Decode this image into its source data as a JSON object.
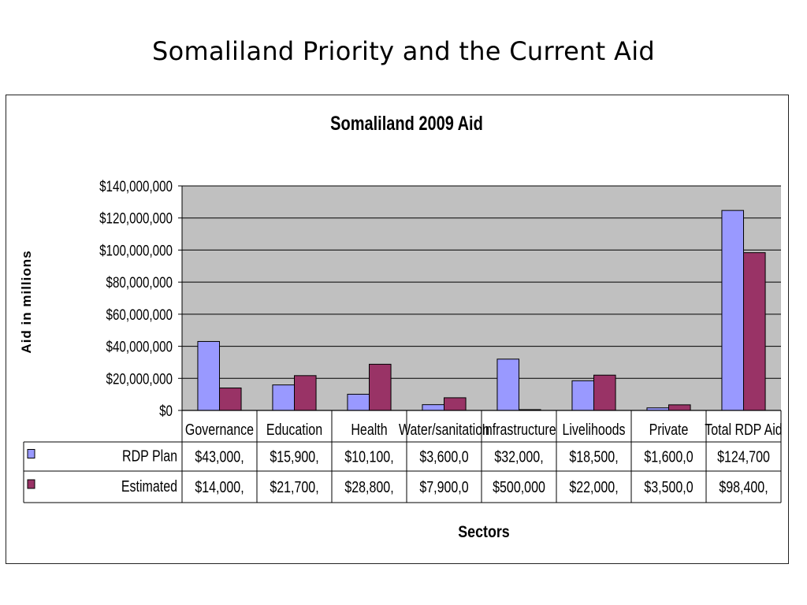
{
  "slide": {
    "title": "Somaliland Priority and the Current Aid"
  },
  "chart_data": {
    "type": "bar",
    "title": "Somaliland 2009 Aid",
    "xlabel": "Sectors",
    "ylabel": "Aid in millions",
    "ylim": [
      0,
      140000000
    ],
    "yticks": [
      "$0",
      "$20,000,000",
      "$40,000,000",
      "$60,000,000",
      "$80,000,000",
      "$100,000,000",
      "$120,000,000",
      "$140,000,000"
    ],
    "ytick_values": [
      0,
      20000000,
      40000000,
      60000000,
      80000000,
      100000000,
      120000000,
      140000000
    ],
    "grid": true,
    "legend": "data-table",
    "categories": [
      "Governance",
      "Education",
      "Health",
      "Water/sanitation",
      "Infrastructure",
      "Livelihoods",
      "Private",
      "Total RDP Aid"
    ],
    "series": [
      {
        "name": "RDP Plan",
        "color": "#9999ff",
        "values": [
          43000000,
          15900000,
          10100000,
          3600000,
          32000000,
          18500000,
          1600000,
          124700000
        ],
        "table_labels": [
          "$43,000,",
          "$15,900,",
          "$10,100,",
          "$3,600,0",
          "$32,000,",
          "$18,500,",
          "$1,600,0",
          "$124,700"
        ]
      },
      {
        "name": "Estimated",
        "color": "#993366",
        "values": [
          14000000,
          21700000,
          28800000,
          7900000,
          500000,
          22000000,
          3500000,
          98400000
        ],
        "table_labels": [
          "$14,000,",
          "$21,700,",
          "$28,800,",
          "$7,900,0",
          "$500,000",
          "$22,000,",
          "$3,500,0",
          "$98,400,"
        ]
      }
    ]
  }
}
